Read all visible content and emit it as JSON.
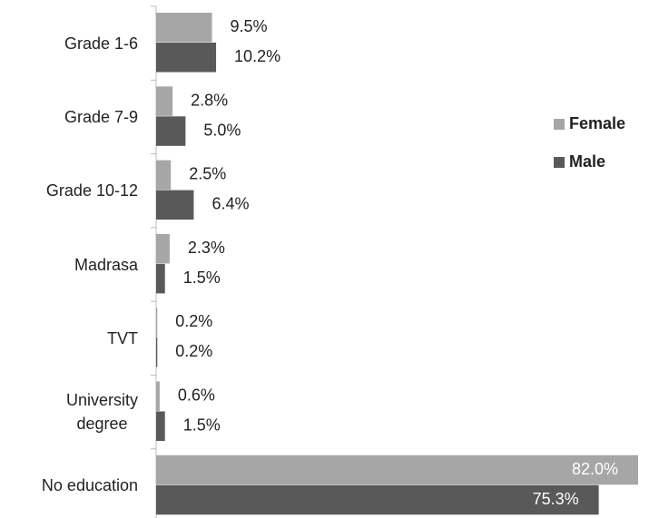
{
  "chart_data": {
    "type": "bar",
    "orientation": "horizontal",
    "categories": [
      "Grade 1-6",
      "Grade 7-9",
      "Grade 10-12",
      "Madrasa",
      "TVT",
      "University\ndegree",
      "No education"
    ],
    "series": [
      {
        "name": "Female",
        "color": "#a6a6a6",
        "values": [
          9.5,
          2.8,
          2.5,
          2.3,
          0.2,
          0.6,
          82.0
        ],
        "value_labels": [
          "9.5%",
          "2.8%",
          "2.5%",
          "2.3%",
          "0.2%",
          "0.6%",
          "82.0%"
        ]
      },
      {
        "name": "Male",
        "color": "#595959",
        "values": [
          10.2,
          5.0,
          6.4,
          1.5,
          0.2,
          1.5,
          75.3
        ],
        "value_labels": [
          "10.2%",
          "5.0%",
          "6.4%",
          "1.5%",
          "0.2%",
          "1.5%",
          "75.3%"
        ]
      }
    ],
    "legend": "right"
  }
}
